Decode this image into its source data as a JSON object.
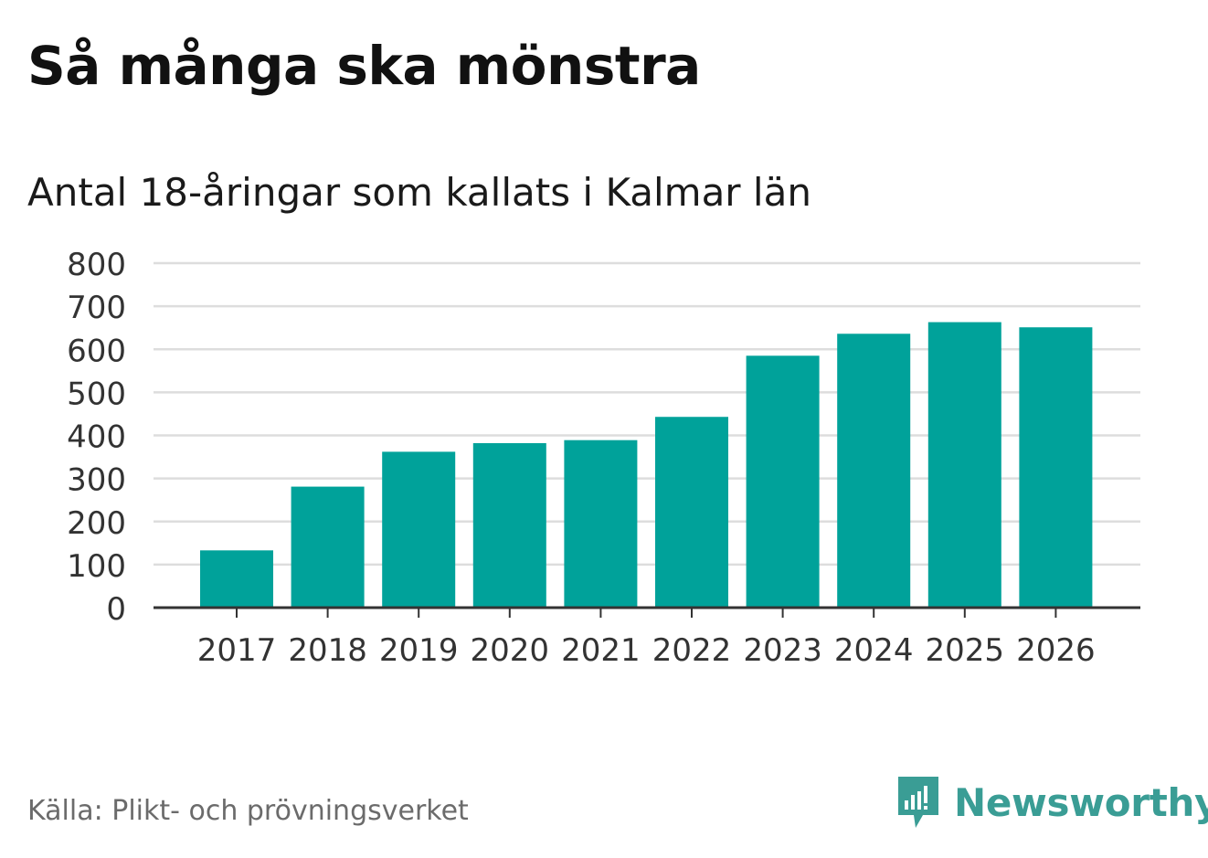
{
  "title": "Så många ska mönstra",
  "source": "Källa: Plikt- och prövningsverket",
  "brand": {
    "name": "Newsworthy",
    "icon": "newsworthy-logo-icon",
    "color": "#3a9d95"
  },
  "colors": {
    "bar": "#00a29a",
    "grid": "#dddddd",
    "axis": "#333333",
    "tick_text": "#333333"
  },
  "chart_data": {
    "type": "bar",
    "title": "Antal 18-åringar som kallats i Kalmar län",
    "xlabel": "",
    "ylabel": "",
    "categories": [
      "2017",
      "2018",
      "2019",
      "2020",
      "2021",
      "2022",
      "2023",
      "2024",
      "2025",
      "2026"
    ],
    "values": [
      133,
      281,
      362,
      382,
      389,
      443,
      585,
      636,
      663,
      651
    ],
    "ylim": [
      0,
      800
    ],
    "yticks": [
      0,
      100,
      200,
      300,
      400,
      500,
      600,
      700,
      800
    ],
    "grid": true
  }
}
